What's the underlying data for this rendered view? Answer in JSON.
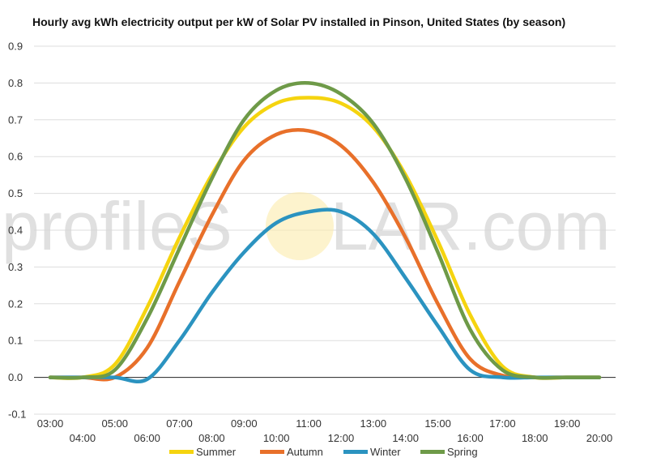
{
  "chart_data": {
    "type": "line",
    "title": "Hourly avg kWh electricity output per kW of Solar PV installed in Pinson, United States (by season)",
    "watermark": {
      "left": "profileS",
      "right": "LAR.com"
    },
    "x": [
      "03:00",
      "04:00",
      "05:00",
      "06:00",
      "07:00",
      "08:00",
      "09:00",
      "10:00",
      "11:00",
      "12:00",
      "13:00",
      "14:00",
      "15:00",
      "16:00",
      "17:00",
      "18:00",
      "19:00",
      "20:00"
    ],
    "xticks_upper": [
      "03:00",
      "05:00",
      "07:00",
      "09:00",
      "11:00",
      "13:00",
      "15:00",
      "17:00",
      "19:00"
    ],
    "xticks_lower": [
      "04:00",
      "06:00",
      "08:00",
      "10:00",
      "12:00",
      "14:00",
      "16:00",
      "18:00",
      "20:00"
    ],
    "yticks": [
      "0.9",
      "0.8",
      "0.7",
      "0.6",
      "0.5",
      "0.4",
      "0.3",
      "0.2",
      "0.1",
      "0.0",
      "-0.1"
    ],
    "ylim": [
      -0.1,
      0.9
    ],
    "grid": true,
    "legend_position": "bottom",
    "series": [
      {
        "name": "Summer",
        "color": "#f5d40f",
        "values": [
          0.0,
          0.0,
          0.035,
          0.19,
          0.38,
          0.55,
          0.68,
          0.745,
          0.76,
          0.745,
          0.68,
          0.55,
          0.37,
          0.17,
          0.03,
          0.0,
          0.0,
          0.0
        ]
      },
      {
        "name": "Autumn",
        "color": "#e8702a",
        "values": [
          0.0,
          0.0,
          0.0,
          0.08,
          0.26,
          0.44,
          0.59,
          0.66,
          0.67,
          0.63,
          0.53,
          0.38,
          0.2,
          0.05,
          0.005,
          0.0,
          0.0,
          0.0
        ]
      },
      {
        "name": "Winter",
        "color": "#2b93c0",
        "values": [
          0.0,
          0.0,
          0.0,
          -0.005,
          0.1,
          0.23,
          0.34,
          0.42,
          0.45,
          0.45,
          0.39,
          0.27,
          0.14,
          0.02,
          0.0,
          0.0,
          0.0,
          0.0
        ]
      },
      {
        "name": "Spring",
        "color": "#6e9a48",
        "values": [
          0.0,
          0.0,
          0.02,
          0.16,
          0.35,
          0.54,
          0.7,
          0.78,
          0.8,
          0.77,
          0.69,
          0.54,
          0.34,
          0.13,
          0.02,
          0.0,
          0.0,
          0.0
        ]
      }
    ]
  }
}
